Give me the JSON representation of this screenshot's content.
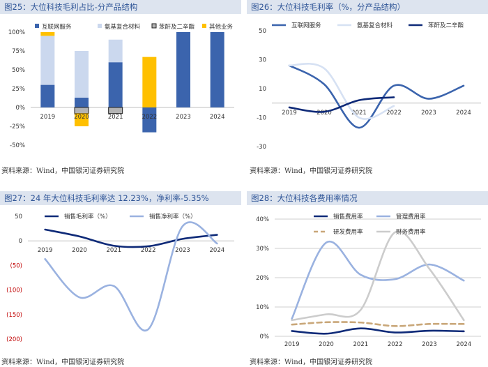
{
  "panels": [
    {
      "title": "图25：大位科技毛利占比-分产品结构",
      "source": "资料来源：Wind，中国银河证券研究院"
    },
    {
      "title": "图26：大位科技毛利率（%，分产品结构）",
      "source": "资料来源：Wind，中国银河证券研究院"
    },
    {
      "title": "图27：24 年大位科技毛利率达 12.23%，净利率-5.35%",
      "source": "资料来源：Wind，中国银河证券研究院"
    },
    {
      "title": "图28：大位科技各费用率情况",
      "source": "资料来源：Wind，中国银河证券研究院"
    }
  ],
  "chart_data": [
    {
      "type": "bar",
      "stacked": true,
      "categories": [
        "2019",
        "2020",
        "2021",
        "2022",
        "2023",
        "2024"
      ],
      "ylim": [
        -50,
        100
      ],
      "yticks": [
        "100%",
        "75%",
        "50%",
        "25%",
        "0%",
        "-25%",
        "-50%"
      ],
      "ytick_values": [
        100,
        75,
        50,
        25,
        0,
        -25,
        -50
      ],
      "legend_position": "top",
      "series": [
        {
          "name": "互联网服务",
          "color": "#3b64ad",
          "values": [
            30,
            13,
            60,
            -33,
            100,
            100
          ]
        },
        {
          "name": "氨基复合材料",
          "color": "#cbd8ee",
          "values": [
            65,
            62,
            30,
            0,
            0,
            0
          ]
        },
        {
          "name": "苯酐及二辛酯",
          "color": "#b3b3b3",
          "values": [
            0,
            -8,
            -8,
            0,
            0,
            0
          ]
        },
        {
          "name": "其他业务",
          "color": "#ffc000",
          "values": [
            5,
            -17,
            0,
            67,
            0,
            0
          ]
        }
      ]
    },
    {
      "type": "line",
      "categories": [
        "2019",
        "2020",
        "2021",
        "2022",
        "2023",
        "2024"
      ],
      "ylim": [
        -30,
        50
      ],
      "yticks": [
        "50",
        "30",
        "10",
        "-10",
        "-30"
      ],
      "ytick_values": [
        50,
        30,
        10,
        -10,
        -30
      ],
      "legend_position": "top",
      "series": [
        {
          "name": "互联网服务",
          "color": "#3b64ad",
          "values": [
            26,
            13,
            -17,
            12,
            3,
            12
          ]
        },
        {
          "name": "氨基复合材料",
          "color": "#d6e1f3",
          "values": [
            26,
            24,
            -10,
            -2,
            null,
            null
          ]
        },
        {
          "name": "苯酐及二辛酯",
          "color": "#0e2a78",
          "values": [
            -3,
            -6,
            2,
            4,
            null,
            null
          ]
        }
      ]
    },
    {
      "type": "line",
      "categories": [
        "2019",
        "2020",
        "2021",
        "2022",
        "2023",
        "2024"
      ],
      "ylim": [
        -200,
        50
      ],
      "yticks": [
        "50",
        "0",
        "(50)",
        "(100)",
        "(150)",
        "(200)"
      ],
      "ytick_values": [
        50,
        0,
        -50,
        -100,
        -150,
        -200
      ],
      "negative_ticks_red": true,
      "legend_position": "top",
      "series": [
        {
          "name": "销售毛利率（%）",
          "color": "#0e2a78",
          "values": [
            23,
            9,
            -10,
            -11,
            4,
            12.23
          ]
        },
        {
          "name": "销售净利率（%）",
          "color": "#9ab2e0",
          "values": [
            -37,
            -115,
            -92,
            -180,
            30,
            -5.35
          ]
        }
      ]
    },
    {
      "type": "line",
      "categories": [
        "2019",
        "2020",
        "2021",
        "2022",
        "2023",
        "2024"
      ],
      "ylim": [
        0,
        40
      ],
      "yticks": [
        "40%",
        "30%",
        "20%",
        "10%",
        "0%"
      ],
      "ytick_values": [
        40,
        30,
        20,
        10,
        0
      ],
      "legend_position": "top",
      "series": [
        {
          "name": "销售费用率",
          "color": "#0e2a78",
          "dash": false,
          "values": [
            1.8,
            0.9,
            2.7,
            1.3,
            1.9,
            1.7
          ]
        },
        {
          "name": "管理费用率",
          "color": "#9ab2e0",
          "dash": false,
          "values": [
            6,
            32,
            21,
            19.5,
            24.5,
            19
          ]
        },
        {
          "name": "研发费用率",
          "color": "#c9a779",
          "dash": true,
          "values": [
            4,
            4.8,
            4.7,
            3.5,
            4.2,
            4.2
          ]
        },
        {
          "name": "财务费用率",
          "color": "#cccccc",
          "dash": false,
          "values": [
            5.5,
            7.5,
            9,
            35.5,
            23,
            5.5
          ]
        }
      ]
    }
  ]
}
